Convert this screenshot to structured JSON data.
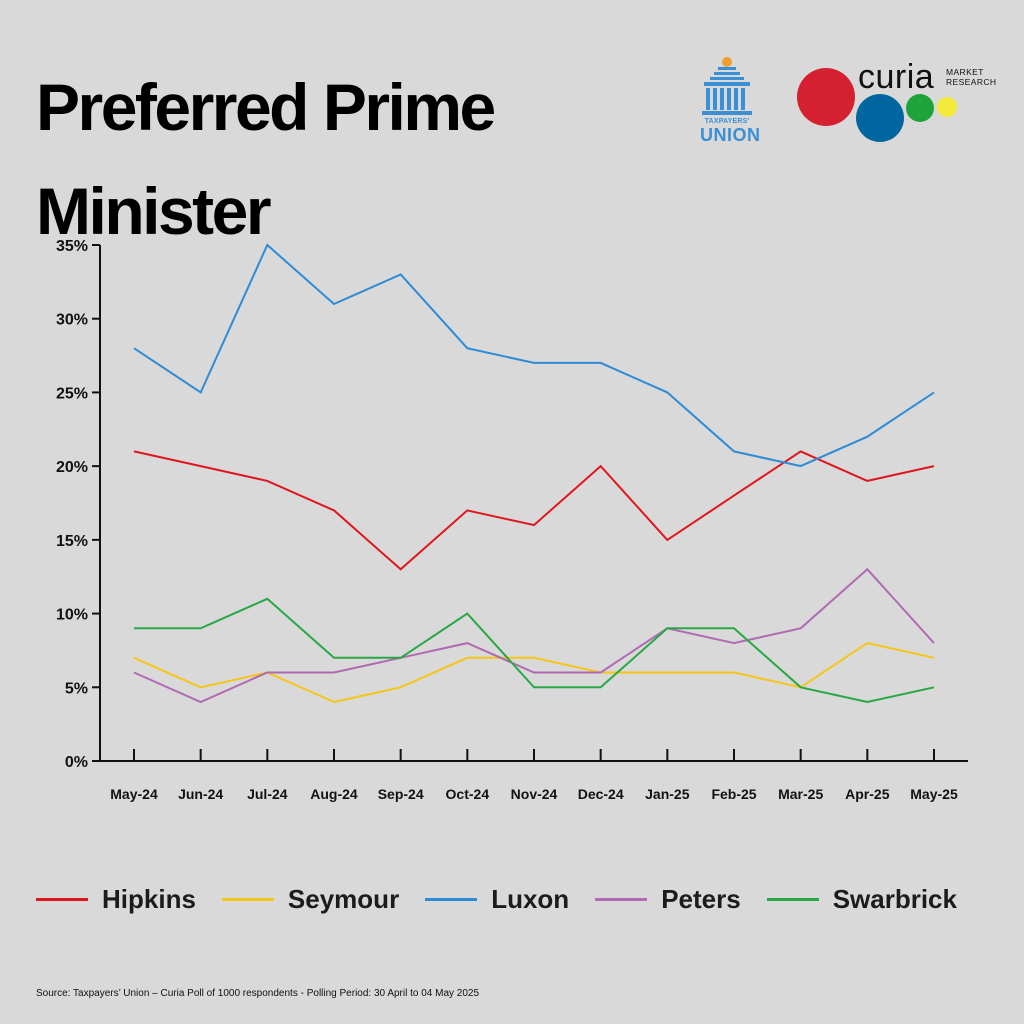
{
  "header": {
    "title": "Preferred Prime Minister"
  },
  "logos": {
    "taxpayers_union_small": "TAXPAYERS'",
    "taxpayers_union_big": "UNION",
    "curia_word": "curia",
    "curia_sub": "MARKET\nRESEARCH"
  },
  "colors": {
    "background": "#d9d9d9",
    "hipkins": "#e0161e",
    "seymour": "#f5c518",
    "luxon": "#2e8bd6",
    "peters": "#b06ab3",
    "swarbrick": "#28a745",
    "curia_red": "#d42030",
    "curia_blue": "#0066a0",
    "curia_green": "#1ea33a",
    "curia_yellow": "#f3ea3a"
  },
  "chart_data": {
    "type": "line",
    "categories": [
      "May-24",
      "Jun-24",
      "Jul-24",
      "Aug-24",
      "Sep-24",
      "Oct-24",
      "Nov-24",
      "Dec-24",
      "Jan-25",
      "Feb-25",
      "Mar-25",
      "Apr-25",
      "May-25"
    ],
    "y_ticks": [
      "0%",
      "5%",
      "10%",
      "15%",
      "20%",
      "25%",
      "30%",
      "35%"
    ],
    "ylim": [
      0,
      35
    ],
    "grid": false,
    "legend_position": "bottom",
    "series": [
      {
        "name": "Hipkins",
        "color_key": "hipkins",
        "values": [
          21,
          20,
          19,
          17,
          13,
          17,
          16,
          20,
          15,
          18,
          21,
          19,
          20
        ]
      },
      {
        "name": "Seymour",
        "color_key": "seymour",
        "values": [
          7,
          5,
          6,
          4,
          5,
          7,
          7,
          6,
          6,
          6,
          5,
          8,
          7
        ]
      },
      {
        "name": "Luxon",
        "color_key": "luxon",
        "values": [
          28,
          25,
          35,
          31,
          33,
          28,
          27,
          27,
          25,
          21,
          20,
          22,
          25
        ]
      },
      {
        "name": "Peters",
        "color_key": "peters",
        "values": [
          6,
          4,
          6,
          6,
          7,
          8,
          6,
          6,
          9,
          8,
          9,
          13,
          8
        ]
      },
      {
        "name": "Swarbrick",
        "color_key": "swarbrick",
        "values": [
          9,
          9,
          11,
          7,
          7,
          10,
          5,
          5,
          9,
          9,
          5,
          4,
          5
        ]
      }
    ]
  },
  "footer": {
    "source": "Source: Taxpayers’ Union – Curia Poll of 1000 respondents -  Polling Period: 30 April to 04 May 2025"
  }
}
